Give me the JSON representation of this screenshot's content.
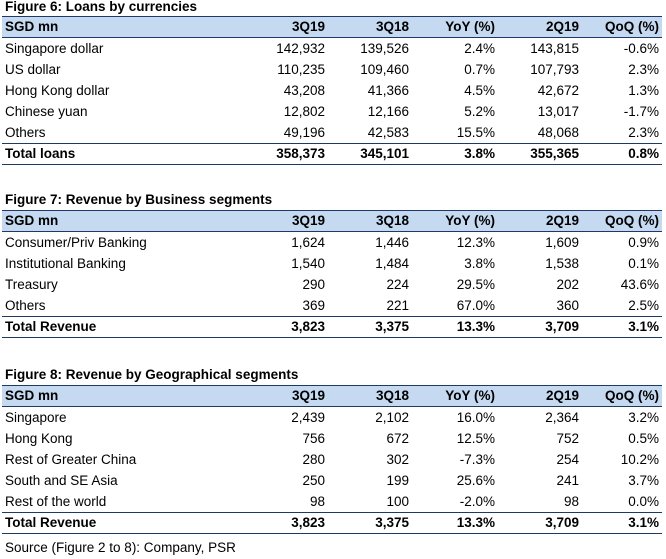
{
  "figures": [
    {
      "title": "Figure 6: Loans by currencies",
      "headers": [
        "SGD mn",
        "3Q19",
        "3Q18",
        "YoY (%)",
        "2Q19",
        "QoQ (%)"
      ],
      "rows": [
        [
          "Singapore dollar",
          "142,932",
          "139,526",
          "2.4%",
          "143,815",
          "-0.6%"
        ],
        [
          "US dollar",
          "110,235",
          "109,460",
          "0.7%",
          "107,793",
          "2.3%"
        ],
        [
          "Hong Kong dollar",
          "43,208",
          "41,366",
          "4.5%",
          "42,672",
          "1.3%"
        ],
        [
          "Chinese yuan",
          "12,802",
          "12,166",
          "5.2%",
          "13,017",
          "-1.7%"
        ],
        [
          "Others",
          "49,196",
          "42,583",
          "15.5%",
          "48,068",
          "2.3%"
        ]
      ],
      "total": [
        "Total loans",
        "358,373",
        "345,101",
        "3.8%",
        "355,365",
        "0.8%"
      ]
    },
    {
      "title": "Figure 7: Revenue by Business segments",
      "headers": [
        "SGD mn",
        "3Q19",
        "3Q18",
        "YoY (%)",
        "2Q19",
        "QoQ (%)"
      ],
      "rows": [
        [
          "Consumer/Priv Banking",
          "1,624",
          "1,446",
          "12.3%",
          "1,609",
          "0.9%"
        ],
        [
          "Institutional Banking",
          "1,540",
          "1,484",
          "3.8%",
          "1,538",
          "0.1%"
        ],
        [
          "Treasury",
          "290",
          "224",
          "29.5%",
          "202",
          "43.6%"
        ],
        [
          "Others",
          "369",
          "221",
          "67.0%",
          "360",
          "2.5%"
        ]
      ],
      "total": [
        "Total Revenue",
        "3,823",
        "3,375",
        "13.3%",
        "3,709",
        "3.1%"
      ]
    },
    {
      "title": "Figure 8: Revenue by Geographical segments",
      "headers": [
        "SGD mn",
        "3Q19",
        "3Q18",
        "YoY (%)",
        "2Q19",
        "QoQ (%)"
      ],
      "rows": [
        [
          "Singapore",
          "2,439",
          "2,102",
          "16.0%",
          "2,364",
          "3.2%"
        ],
        [
          "Hong Kong",
          "756",
          "672",
          "12.5%",
          "752",
          "0.5%"
        ],
        [
          "Rest of Greater China",
          "280",
          "302",
          "-7.3%",
          "254",
          "10.2%"
        ],
        [
          "South and SE Asia",
          "250",
          "199",
          "25.6%",
          "241",
          "3.7%"
        ],
        [
          "Rest of the world",
          "98",
          "100",
          "-2.0%",
          "98",
          "0.0%"
        ]
      ],
      "total": [
        "Total Revenue",
        "3,823",
        "3,375",
        "13.3%",
        "3,709",
        "3.1%"
      ]
    }
  ],
  "source": "Source (Figure 2 to 8): Company, PSR"
}
